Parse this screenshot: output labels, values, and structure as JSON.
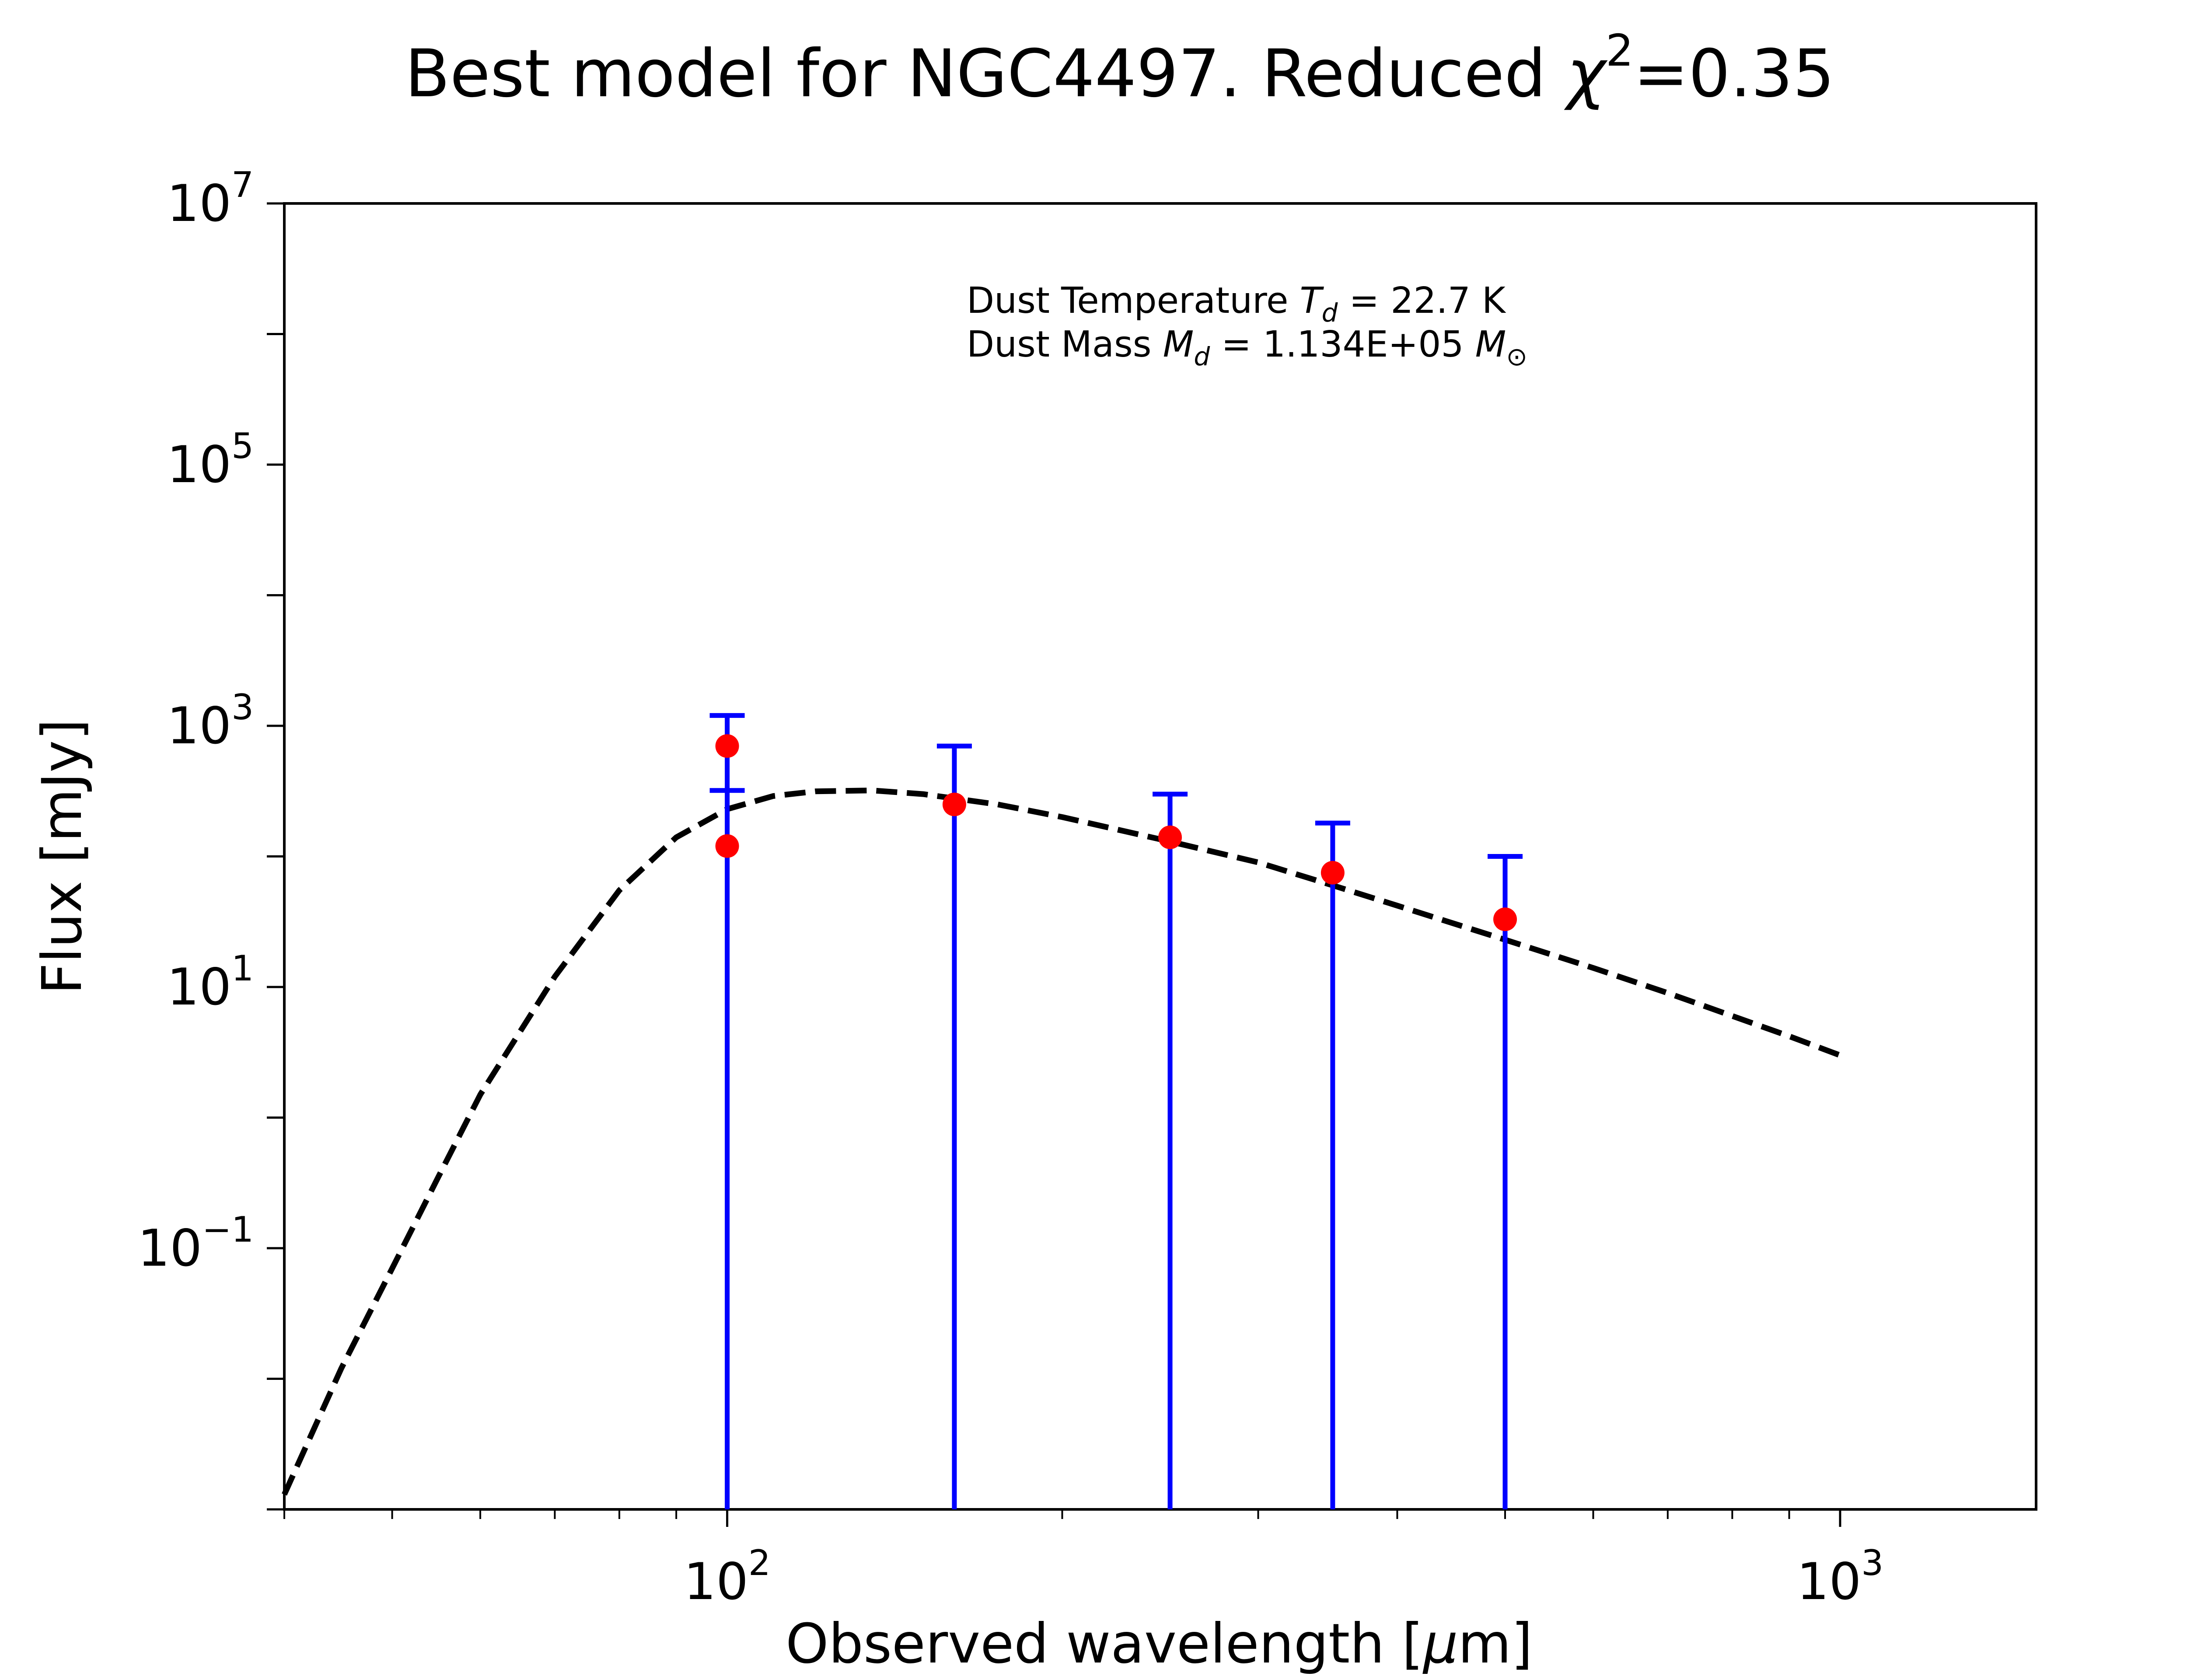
{
  "chart_data": {
    "type": "scatter",
    "title": {
      "text": "Best model for NGC4497. Reduced ",
      "chi_symbol": "χ",
      "chi_power": "2",
      "value": "=0.35"
    },
    "xlabel": {
      "text": "Observed wavelength [",
      "mu": "μ",
      "unit": "m]"
    },
    "ylabel": "Flux [mJy]",
    "x_scale": "log",
    "y_scale": "log",
    "xlim": [
      40,
      1500
    ],
    "ylim": [
      0.001,
      10000000
    ],
    "grid": false,
    "x_ticks": [
      {
        "value": 100,
        "base": "10",
        "exp": "2"
      },
      {
        "value": 1000,
        "base": "10",
        "exp": "3"
      }
    ],
    "y_ticks": [
      {
        "value": 0.1,
        "base": "10",
        "exp": "−1"
      },
      {
        "value": 10,
        "base": "10",
        "exp": "1"
      },
      {
        "value": 1000,
        "base": "10",
        "exp": "3"
      },
      {
        "value": 100000,
        "base": "10",
        "exp": "5"
      },
      {
        "value": 10000000,
        "base": "10",
        "exp": "7"
      }
    ],
    "annotations": {
      "line1": {
        "prefix": "Dust Temperature ",
        "sym": "T",
        "sub": "d",
        "suffix": " = 22.7 K"
      },
      "line2": {
        "prefix": "Dust Mass ",
        "sym": "M",
        "sub": "d",
        "mid": " = 1.134E+05 ",
        "sym2": "M",
        "sub2": "⊙"
      }
    },
    "series": [
      {
        "kind": "points",
        "color": "#ff0000",
        "points": [
          {
            "x": 100,
            "y": 700
          },
          {
            "x": 100,
            "y": 120
          },
          {
            "x": 160,
            "y": 250
          },
          {
            "x": 250,
            "y": 140
          },
          {
            "x": 350,
            "y": 75
          },
          {
            "x": 500,
            "y": 33
          }
        ]
      },
      {
        "kind": "errorbars",
        "color": "#0000ff",
        "bars": [
          {
            "x": 100,
            "low": 0.001,
            "high": 1200
          },
          {
            "x": 100,
            "low": 0.001,
            "high": 320
          },
          {
            "x": 160,
            "low": 0.001,
            "high": 700
          },
          {
            "x": 250,
            "low": 0.001,
            "high": 300
          },
          {
            "x": 350,
            "low": 0.001,
            "high": 180
          },
          {
            "x": 500,
            "low": 0.001,
            "high": 100
          }
        ]
      },
      {
        "kind": "model",
        "color": "#000000",
        "style": "dashed",
        "points": [
          {
            "x": 40,
            "y": 0.0013
          },
          {
            "x": 45,
            "y": 0.012
          },
          {
            "x": 50,
            "y": 0.07
          },
          {
            "x": 55,
            "y": 0.35
          },
          {
            "x": 60,
            "y": 1.5
          },
          {
            "x": 70,
            "y": 12
          },
          {
            "x": 80,
            "y": 55
          },
          {
            "x": 90,
            "y": 140
          },
          {
            "x": 100,
            "y": 230
          },
          {
            "x": 110,
            "y": 290
          },
          {
            "x": 120,
            "y": 315
          },
          {
            "x": 135,
            "y": 320
          },
          {
            "x": 150,
            "y": 300
          },
          {
            "x": 175,
            "y": 250
          },
          {
            "x": 200,
            "y": 200
          },
          {
            "x": 250,
            "y": 130
          },
          {
            "x": 300,
            "y": 90
          },
          {
            "x": 350,
            "y": 60
          },
          {
            "x": 400,
            "y": 42
          },
          {
            "x": 500,
            "y": 23
          },
          {
            "x": 600,
            "y": 14
          },
          {
            "x": 700,
            "y": 9
          },
          {
            "x": 800,
            "y": 6
          },
          {
            "x": 900,
            "y": 4.2
          },
          {
            "x": 1000,
            "y": 3
          }
        ]
      }
    ]
  }
}
